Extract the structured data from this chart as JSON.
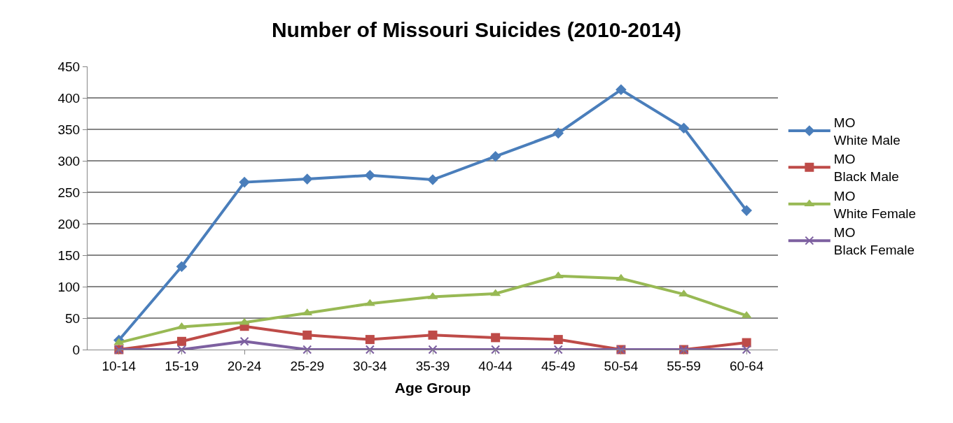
{
  "chart_data": {
    "type": "line",
    "title": "Number of Missouri Suicides (2010-2014)",
    "xlabel": "Age Group",
    "categories": [
      "10-14",
      "15-19",
      "20-24",
      "25-29",
      "30-34",
      "35-39",
      "40-44",
      "45-49",
      "50-54",
      "55-59",
      "60-64"
    ],
    "series": [
      {
        "name": "MO\nWhite Male",
        "color": "#4a7ebb",
        "marker": "diamond",
        "values": [
          15,
          132,
          266,
          271,
          277,
          270,
          307,
          344,
          413,
          352,
          221
        ]
      },
      {
        "name": "MO\nBlack Male",
        "color": "#be4b48",
        "marker": "square",
        "values": [
          0,
          13,
          37,
          23,
          16,
          23,
          19,
          16,
          0,
          0,
          11
        ]
      },
      {
        "name": "MO\nWhite Female",
        "color": "#98b954",
        "marker": "triangle",
        "values": [
          11,
          36,
          43,
          58,
          73,
          84,
          89,
          117,
          113,
          88,
          54
        ]
      },
      {
        "name": "MO\nBlack Female",
        "color": "#7d60a0",
        "marker": "cross",
        "values": [
          0,
          0,
          13,
          0,
          0,
          0,
          0,
          0,
          0,
          0,
          0
        ]
      }
    ],
    "ylim": [
      0,
      450
    ],
    "yticks": [
      0,
      50,
      100,
      150,
      200,
      250,
      300,
      350,
      400,
      450
    ],
    "grid": "y",
    "legend": "right",
    "line_style": "solid"
  }
}
